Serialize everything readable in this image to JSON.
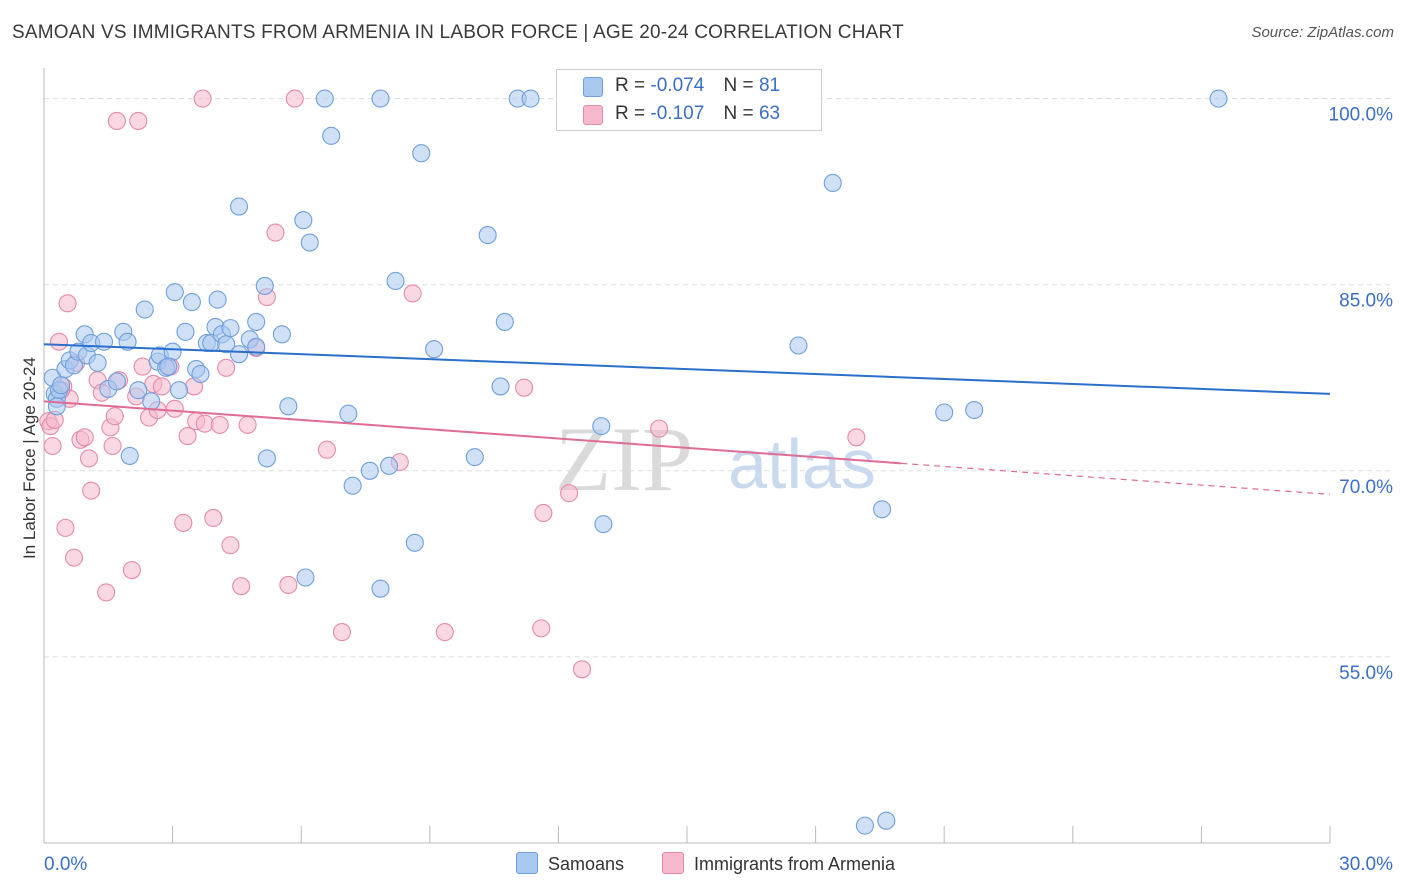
{
  "title": "SAMOAN VS IMMIGRANTS FROM ARMENIA IN LABOR FORCE | AGE 20-24 CORRELATION CHART",
  "source": "Source: ZipAtlas.com",
  "watermark": {
    "zip": "ZIP",
    "atlas": "atlas"
  },
  "legend_top": {
    "rows": [
      {
        "r_label": "R =",
        "r_value": "-0.074",
        "n_label": "N =",
        "n_value": "81"
      },
      {
        "r_label": "R =",
        "r_value": "-0.107",
        "n_label": "N =",
        "n_value": "63"
      }
    ]
  },
  "legend_bottom": {
    "series1": "Samoans",
    "series2": "Immigrants from Armenia"
  },
  "colors": {
    "series1_fill": "#a9c8f0",
    "series1_stroke": "#6f9fdc",
    "series1_line": "#2a6fcb",
    "series2_fill": "#f6b8cc",
    "series2_stroke": "#e68aa9",
    "series2_line": "#e06b95",
    "axis_tick_text": "#3a6fc4",
    "grid": "#dddddd"
  },
  "chart_data": {
    "type": "scatter",
    "xlabel": "",
    "ylabel": "In Labor Force | Age 20-24",
    "xlim": [
      0,
      30
    ],
    "ylim": [
      40,
      101.5
    ],
    "x_tick_labels": [
      {
        "value": 0,
        "label": "0.0%"
      },
      {
        "value": 30,
        "label": "30.0%"
      }
    ],
    "y_tick_labels": [
      {
        "value": 100,
        "label": "100.0%"
      },
      {
        "value": 85,
        "label": "85.0%"
      },
      {
        "value": 70,
        "label": "70.0%"
      },
      {
        "value": 55,
        "label": "55.0%"
      }
    ],
    "series": [
      {
        "name": "Samoans",
        "r": -0.074,
        "n": 81,
        "trend": {
          "x0": 0,
          "y0": 80.2,
          "x1": 30,
          "y1": 76.2,
          "dashed_from": null
        },
        "points": [
          [
            0.2,
            77.5
          ],
          [
            0.25,
            76.2
          ],
          [
            0.3,
            75.8
          ],
          [
            0.35,
            76.5
          ],
          [
            0.5,
            78.2
          ],
          [
            0.6,
            78.9
          ],
          [
            0.7,
            78.5
          ],
          [
            0.8,
            79.6
          ],
          [
            0.95,
            81.0
          ],
          [
            1.0,
            79.3
          ],
          [
            1.1,
            80.3
          ],
          [
            1.25,
            78.7
          ],
          [
            1.4,
            80.4
          ],
          [
            1.5,
            76.6
          ],
          [
            1.7,
            77.2
          ],
          [
            1.85,
            81.2
          ],
          [
            1.95,
            80.4
          ],
          [
            2.0,
            71.2
          ],
          [
            2.2,
            76.5
          ],
          [
            2.35,
            83.0
          ],
          [
            2.5,
            75.6
          ],
          [
            2.65,
            78.8
          ],
          [
            2.7,
            79.3
          ],
          [
            2.85,
            78.3
          ],
          [
            3.0,
            79.6
          ],
          [
            3.05,
            84.4
          ],
          [
            3.15,
            76.5
          ],
          [
            3.3,
            81.2
          ],
          [
            3.45,
            83.6
          ],
          [
            3.55,
            78.2
          ],
          [
            3.65,
            77.8
          ],
          [
            3.8,
            80.3
          ],
          [
            3.9,
            80.3
          ],
          [
            4.0,
            81.6
          ],
          [
            4.05,
            83.8
          ],
          [
            4.15,
            81.0
          ],
          [
            4.25,
            80.2
          ],
          [
            4.35,
            81.5
          ],
          [
            4.55,
            91.3
          ],
          [
            4.55,
            79.4
          ],
          [
            4.8,
            80.6
          ],
          [
            4.95,
            82.0
          ],
          [
            4.95,
            80.0
          ],
          [
            5.15,
            84.9
          ],
          [
            5.2,
            71.0
          ],
          [
            5.55,
            81.0
          ],
          [
            5.7,
            75.2
          ],
          [
            6.05,
            90.2
          ],
          [
            6.1,
            61.4
          ],
          [
            6.2,
            88.4
          ],
          [
            6.55,
            100.0
          ],
          [
            6.7,
            97.0
          ],
          [
            7.1,
            74.6
          ],
          [
            7.2,
            68.8
          ],
          [
            7.6,
            70.0
          ],
          [
            7.85,
            100.0
          ],
          [
            7.85,
            60.5
          ],
          [
            8.05,
            70.4
          ],
          [
            8.2,
            85.3
          ],
          [
            8.65,
            64.2
          ],
          [
            8.8,
            95.6
          ],
          [
            9.1,
            79.8
          ],
          [
            10.05,
            71.1
          ],
          [
            10.35,
            89.0
          ],
          [
            10.65,
            76.8
          ],
          [
            10.75,
            82.0
          ],
          [
            11.05,
            100.0
          ],
          [
            11.35,
            100.0
          ],
          [
            13.0,
            73.6
          ],
          [
            13.05,
            65.7
          ],
          [
            17.6,
            80.1
          ],
          [
            18.4,
            93.2
          ],
          [
            19.55,
            66.9
          ],
          [
            21.0,
            74.7
          ],
          [
            21.7,
            74.9
          ],
          [
            27.4,
            100.0
          ],
          [
            19.15,
            41.4
          ],
          [
            19.65,
            41.8
          ],
          [
            0.3,
            75.2
          ],
          [
            0.4,
            76.9
          ],
          [
            2.9,
            78.4
          ]
        ]
      },
      {
        "name": "Immigrants from Armenia",
        "r": -0.107,
        "n": 63,
        "trend": {
          "x0": 0,
          "y0": 75.6,
          "x1": 30,
          "y1": 68.1,
          "dashed_from": 20.0
        },
        "points": [
          [
            0.1,
            74.0
          ],
          [
            0.15,
            73.6
          ],
          [
            0.2,
            72.0
          ],
          [
            0.25,
            74.1
          ],
          [
            0.35,
            80.4
          ],
          [
            0.45,
            76.8
          ],
          [
            0.5,
            65.4
          ],
          [
            0.55,
            83.5
          ],
          [
            0.6,
            75.8
          ],
          [
            0.7,
            63.0
          ],
          [
            0.75,
            78.7
          ],
          [
            0.85,
            72.5
          ],
          [
            0.95,
            72.7
          ],
          [
            1.05,
            71.0
          ],
          [
            1.1,
            68.4
          ],
          [
            1.25,
            77.3
          ],
          [
            1.35,
            76.3
          ],
          [
            1.45,
            60.2
          ],
          [
            1.55,
            73.5
          ],
          [
            1.6,
            72.0
          ],
          [
            1.7,
            98.2
          ],
          [
            1.75,
            77.3
          ],
          [
            2.05,
            62.0
          ],
          [
            2.15,
            76.0
          ],
          [
            2.2,
            98.2
          ],
          [
            2.3,
            78.4
          ],
          [
            2.45,
            74.3
          ],
          [
            2.55,
            77.0
          ],
          [
            2.65,
            74.9
          ],
          [
            2.75,
            76.8
          ],
          [
            2.95,
            78.4
          ],
          [
            3.05,
            75.0
          ],
          [
            3.25,
            65.8
          ],
          [
            3.35,
            72.8
          ],
          [
            3.5,
            76.8
          ],
          [
            3.55,
            74.0
          ],
          [
            3.7,
            100.0
          ],
          [
            3.75,
            73.8
          ],
          [
            3.95,
            66.2
          ],
          [
            4.1,
            73.7
          ],
          [
            4.25,
            78.3
          ],
          [
            4.35,
            64.0
          ],
          [
            4.6,
            60.7
          ],
          [
            4.75,
            73.7
          ],
          [
            4.95,
            79.9
          ],
          [
            5.2,
            84.0
          ],
          [
            5.4,
            89.2
          ],
          [
            5.7,
            60.8
          ],
          [
            5.85,
            100.0
          ],
          [
            6.6,
            71.7
          ],
          [
            6.95,
            57.0
          ],
          [
            8.3,
            70.7
          ],
          [
            8.6,
            84.3
          ],
          [
            9.35,
            57.0
          ],
          [
            11.2,
            76.7
          ],
          [
            11.6,
            57.3
          ],
          [
            11.65,
            66.6
          ],
          [
            12.25,
            68.2
          ],
          [
            12.55,
            54.0
          ],
          [
            14.35,
            73.4
          ],
          [
            18.95,
            72.7
          ],
          [
            0.4,
            76.5
          ],
          [
            1.65,
            74.4
          ]
        ]
      }
    ]
  }
}
